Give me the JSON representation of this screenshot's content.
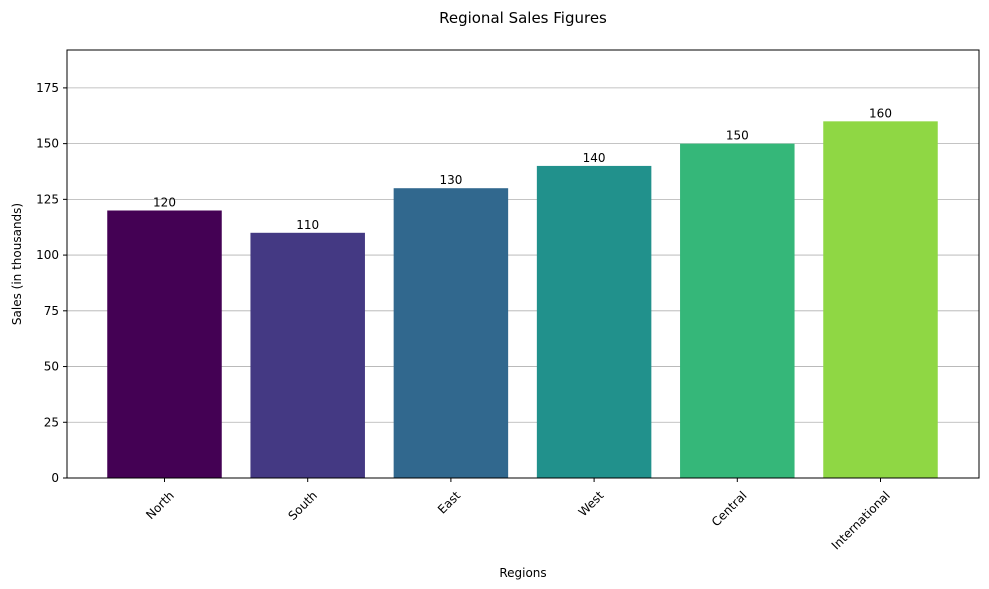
{
  "chart_data": {
    "type": "bar",
    "title": "Regional Sales Figures",
    "xlabel": "Regions",
    "ylabel": "Sales (in thousands)",
    "categories": [
      "North",
      "South",
      "East",
      "West",
      "Central",
      "International"
    ],
    "values": [
      120,
      110,
      130,
      140,
      150,
      160
    ],
    "data_labels": [
      "120",
      "110",
      "130",
      "140",
      "150",
      "160"
    ],
    "colors": [
      "#440154",
      "#443983",
      "#31688e",
      "#21918c",
      "#35b779",
      "#8fd744"
    ],
    "ylim": [
      0,
      192
    ],
    "yticks": [
      0,
      25,
      50,
      75,
      100,
      125,
      150,
      175
    ],
    "grid": "horizontal",
    "x_tick_rotation": "45 degrees"
  }
}
